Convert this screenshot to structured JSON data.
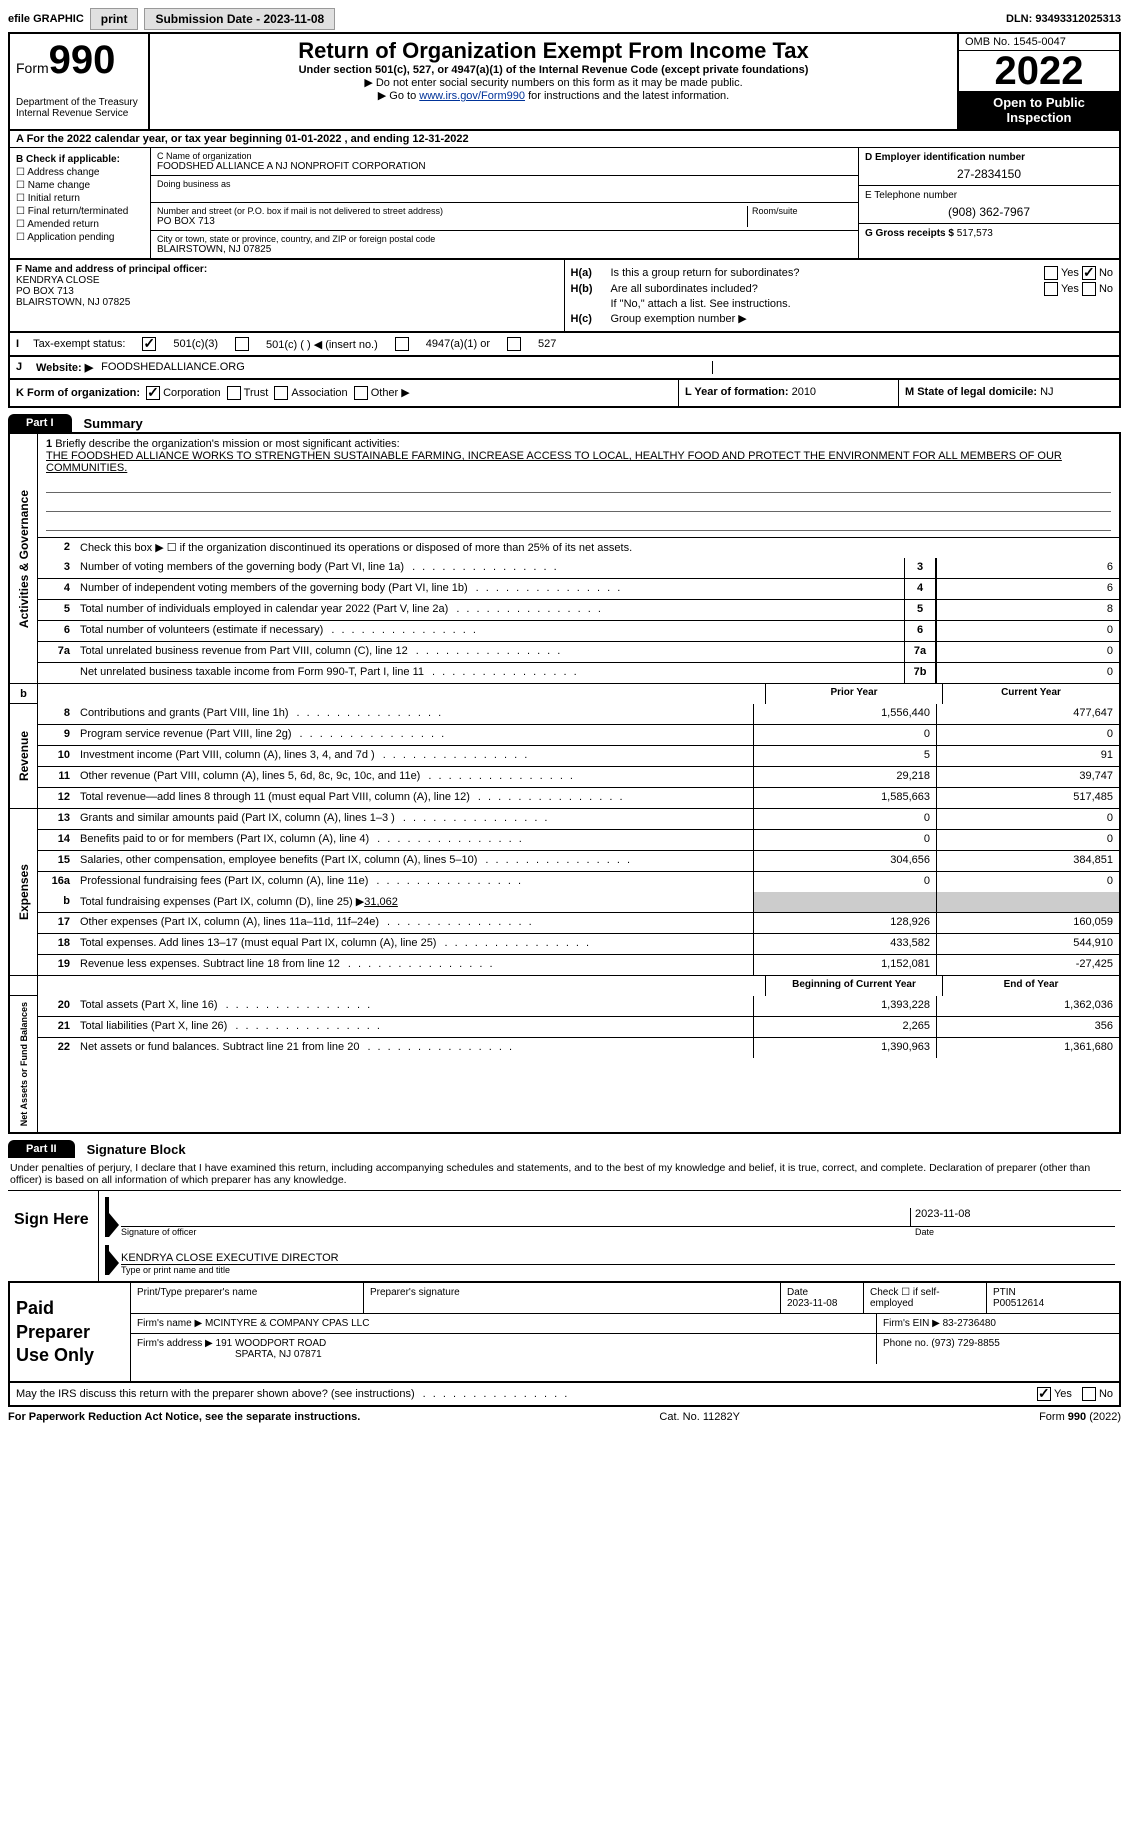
{
  "topbar": {
    "efile_label": "efile GRAPHIC",
    "print_btn": "print",
    "submission_label": "Submission Date - 2023-11-08",
    "dln": "DLN: 93493312025313"
  },
  "header": {
    "form_label": "Form",
    "form_number": "990",
    "dept": "Department of the Treasury",
    "irs": "Internal Revenue Service",
    "title": "Return of Organization Exempt From Income Tax",
    "subtitle": "Under section 501(c), 527, or 4947(a)(1) of the Internal Revenue Code (except private foundations)",
    "note1": "▶ Do not enter social security numbers on this form as it may be made public.",
    "note2_pre": "▶ Go to ",
    "note2_link": "www.irs.gov/Form990",
    "note2_post": " for instructions and the latest information.",
    "omb": "OMB No. 1545-0047",
    "year": "2022",
    "open": "Open to Public Inspection"
  },
  "row_a": "A For the 2022 calendar year, or tax year beginning 01-01-2022    , and ending 12-31-2022",
  "section_b": {
    "check_label": "B Check if applicable:",
    "checks": [
      "Address change",
      "Name change",
      "Initial return",
      "Final return/terminated",
      "Amended return",
      "Application pending"
    ],
    "c_label": "C Name of organization",
    "org_name": "FOODSHED ALLIANCE A NJ NONPROFIT CORPORATION",
    "dba_label": "Doing business as",
    "street_label": "Number and street (or P.O. box if mail is not delivered to street address)",
    "room_label": "Room/suite",
    "street": "PO BOX 713",
    "city_label": "City or town, state or province, country, and ZIP or foreign postal code",
    "city": "BLAIRSTOWN, NJ  07825",
    "d_label": "D Employer identification number",
    "ein": "27-2834150",
    "e_label": "E Telephone number",
    "phone": "(908) 362-7967",
    "g_label": "G Gross receipts $",
    "gross": "517,573"
  },
  "section_f": {
    "f_label": "F Name and address of principal officer:",
    "name": "KENDRYA CLOSE",
    "addr1": "PO BOX 713",
    "addr2": "BLAIRSTOWN, NJ  07825",
    "ha_label": "H(a)",
    "ha_text": "Is this a group return for subordinates?",
    "hb_label": "H(b)",
    "hb_text": "Are all subordinates included?",
    "hb_note": "If \"No,\" attach a list. See instructions.",
    "hc_label": "H(c)",
    "hc_text": "Group exemption number ▶",
    "yes": "Yes",
    "no": "No"
  },
  "tax_status": {
    "i_label": "I",
    "label": "Tax-exempt status:",
    "opt1": "501(c)(3)",
    "opt2": "501(c) (   ) ◀ (insert no.)",
    "opt3": "4947(a)(1) or",
    "opt4": "527"
  },
  "website": {
    "j_label": "J",
    "label": "Website: ▶",
    "value": "FOODSHEDALLIANCE.ORG"
  },
  "row_k": {
    "k_label": "K Form of organization:",
    "corp": "Corporation",
    "trust": "Trust",
    "assoc": "Association",
    "other": "Other ▶",
    "l_label": "L Year of formation:",
    "l_val": "2010",
    "m_label": "M State of legal domicile:",
    "m_val": "NJ"
  },
  "parts": {
    "p1": "Part I",
    "p1_title": "Summary",
    "p2": "Part II",
    "p2_title": "Signature Block"
  },
  "side_labels": {
    "act": "Activities & Governance",
    "rev": "Revenue",
    "exp": "Expenses",
    "net": "Net Assets or Fund Balances"
  },
  "mission": {
    "num": "1",
    "intro": "Briefly describe the organization's mission or most significant activities:",
    "text": "THE FOODSHED ALLIANCE WORKS TO STRENGTHEN SUSTAINABLE FARMING, INCREASE ACCESS TO LOCAL, HEALTHY FOOD AND PROTECT THE ENVIRONMENT FOR ALL MEMBERS OF OUR COMMUNITIES."
  },
  "line2": {
    "num": "2",
    "text": "Check this box ▶ ☐  if the organization discontinued its operations or disposed of more than 25% of its net assets."
  },
  "lines_gov": [
    {
      "n": "3",
      "d": "Number of voting members of the governing body (Part VI, line 1a)",
      "box": "3",
      "v": "6"
    },
    {
      "n": "4",
      "d": "Number of independent voting members of the governing body (Part VI, line 1b)",
      "box": "4",
      "v": "6"
    },
    {
      "n": "5",
      "d": "Total number of individuals employed in calendar year 2022 (Part V, line 2a)",
      "box": "5",
      "v": "8"
    },
    {
      "n": "6",
      "d": "Total number of volunteers (estimate if necessary)",
      "box": "6",
      "v": "0"
    },
    {
      "n": "7a",
      "d": "Total unrelated business revenue from Part VIII, column (C), line 12",
      "box": "7a",
      "v": "0"
    },
    {
      "n": "",
      "d": "Net unrelated business taxable income from Form 990-T, Part I, line 11",
      "box": "7b",
      "v": "0"
    }
  ],
  "col_headers": {
    "b": "b",
    "py": "Prior Year",
    "cy": "Current Year",
    "by": "Beginning of Current Year",
    "ey": "End of Year"
  },
  "lines_rev": [
    {
      "n": "8",
      "d": "Contributions and grants (Part VIII, line 1h)",
      "py": "1,556,440",
      "cy": "477,647"
    },
    {
      "n": "9",
      "d": "Program service revenue (Part VIII, line 2g)",
      "py": "0",
      "cy": "0"
    },
    {
      "n": "10",
      "d": "Investment income (Part VIII, column (A), lines 3, 4, and 7d )",
      "py": "5",
      "cy": "91"
    },
    {
      "n": "11",
      "d": "Other revenue (Part VIII, column (A), lines 5, 6d, 8c, 9c, 10c, and 11e)",
      "py": "29,218",
      "cy": "39,747"
    },
    {
      "n": "12",
      "d": "Total revenue—add lines 8 through 11 (must equal Part VIII, column (A), line 12)",
      "py": "1,585,663",
      "cy": "517,485"
    }
  ],
  "lines_exp": [
    {
      "n": "13",
      "d": "Grants and similar amounts paid (Part IX, column (A), lines 1–3 )",
      "py": "0",
      "cy": "0"
    },
    {
      "n": "14",
      "d": "Benefits paid to or for members (Part IX, column (A), line 4)",
      "py": "0",
      "cy": "0"
    },
    {
      "n": "15",
      "d": "Salaries, other compensation, employee benefits (Part IX, column (A), lines 5–10)",
      "py": "304,656",
      "cy": "384,851"
    },
    {
      "n": "16a",
      "d": "Professional fundraising fees (Part IX, column (A), line 11e)",
      "py": "0",
      "cy": "0"
    }
  ],
  "line16b": {
    "n": "b",
    "d": "Total fundraising expenses (Part IX, column (D), line 25) ▶",
    "v": "31,062"
  },
  "lines_exp2": [
    {
      "n": "17",
      "d": "Other expenses (Part IX, column (A), lines 11a–11d, 11f–24e)",
      "py": "128,926",
      "cy": "160,059"
    },
    {
      "n": "18",
      "d": "Total expenses. Add lines 13–17 (must equal Part IX, column (A), line 25)",
      "py": "433,582",
      "cy": "544,910"
    },
    {
      "n": "19",
      "d": "Revenue less expenses. Subtract line 18 from line 12",
      "py": "1,152,081",
      "cy": "-27,425"
    }
  ],
  "lines_net": [
    {
      "n": "20",
      "d": "Total assets (Part X, line 16)",
      "py": "1,393,228",
      "cy": "1,362,036"
    },
    {
      "n": "21",
      "d": "Total liabilities (Part X, line 26)",
      "py": "2,265",
      "cy": "356"
    },
    {
      "n": "22",
      "d": "Net assets or fund balances. Subtract line 21 from line 20",
      "py": "1,390,963",
      "cy": "1,361,680"
    }
  ],
  "penalty": "Under penalties of perjury, I declare that I have examined this return, including accompanying schedules and statements, and to the best of my knowledge and belief, it is true, correct, and complete. Declaration of preparer (other than officer) is based on all information of which preparer has any knowledge.",
  "sign": {
    "here": "Sign Here",
    "sig_label": "Signature of officer",
    "date": "2023-11-08",
    "date_label": "Date",
    "name": "KENDRYA CLOSE  EXECUTIVE DIRECTOR",
    "name_label": "Type or print name and title"
  },
  "preparer": {
    "title": "Paid Preparer Use Only",
    "h1": "Print/Type preparer's name",
    "h2": "Preparer's signature",
    "h3": "Date",
    "date": "2023-11-08",
    "h4": "Check ☐ if self-employed",
    "h5": "PTIN",
    "ptin": "P00512614",
    "firm_name_label": "Firm's name    ▶",
    "firm_name": "MCINTYRE & COMPANY CPAS LLC",
    "firm_ein_label": "Firm's EIN ▶",
    "firm_ein": "83-2736480",
    "firm_addr_label": "Firm's address ▶",
    "firm_addr1": "191 WOODPORT ROAD",
    "firm_addr2": "SPARTA, NJ  07871",
    "phone_label": "Phone no.",
    "phone": "(973) 729-8855"
  },
  "footer": {
    "discuss": "May the IRS discuss this return with the preparer shown above? (see instructions)",
    "yes": "Yes",
    "no": "No",
    "paperwork": "For Paperwork Reduction Act Notice, see the separate instructions.",
    "cat": "Cat. No. 11282Y",
    "form": "Form 990 (2022)"
  }
}
